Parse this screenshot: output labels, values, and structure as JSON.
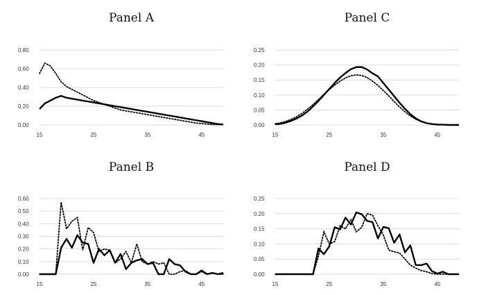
{
  "chart_data": [
    {
      "type": "line",
      "title": "Panel A",
      "xlabel": "",
      "ylabel": "",
      "x": [
        15,
        16,
        17,
        18,
        19,
        20,
        21,
        22,
        23,
        24,
        25,
        26,
        27,
        28,
        29,
        30,
        31,
        32,
        33,
        34,
        35,
        36,
        37,
        38,
        39,
        40,
        41,
        42,
        43,
        44,
        45,
        46,
        47,
        48,
        49
      ],
      "xticks": [
        15,
        25,
        35,
        45
      ],
      "ylim": [
        0,
        0.8
      ],
      "yticks": [
        "0.00",
        "0.20",
        "0.40",
        "0.60",
        "0.80"
      ],
      "grid": true,
      "series": [
        {
          "style": "solid",
          "values": [
            0.17,
            0.23,
            0.26,
            0.29,
            0.31,
            0.29,
            0.28,
            0.27,
            0.26,
            0.25,
            0.24,
            0.23,
            0.22,
            0.21,
            0.2,
            0.19,
            0.18,
            0.17,
            0.16,
            0.15,
            0.14,
            0.13,
            0.12,
            0.11,
            0.1,
            0.09,
            0.08,
            0.07,
            0.06,
            0.05,
            0.04,
            0.03,
            0.02,
            0.01,
            0.005
          ]
        },
        {
          "style": "dotted",
          "values": [
            0.55,
            0.66,
            0.63,
            0.55,
            0.46,
            0.41,
            0.38,
            0.35,
            0.32,
            0.29,
            0.26,
            0.24,
            0.22,
            0.2,
            0.18,
            0.16,
            0.15,
            0.14,
            0.13,
            0.12,
            0.11,
            0.1,
            0.09,
            0.08,
            0.07,
            0.06,
            0.05,
            0.04,
            0.03,
            0.02,
            0.015,
            0.01,
            0.005,
            0.003,
            0.002
          ]
        }
      ]
    },
    {
      "type": "line",
      "title": "Panel C",
      "xlabel": "",
      "ylabel": "",
      "x": [
        15,
        16,
        17,
        18,
        19,
        20,
        21,
        22,
        23,
        24,
        25,
        26,
        27,
        28,
        29,
        30,
        31,
        32,
        33,
        34,
        35,
        36,
        37,
        38,
        39,
        40,
        41,
        42,
        43,
        44,
        45,
        46,
        47,
        48,
        49
      ],
      "xticks": [
        15,
        25,
        35,
        45
      ],
      "ylim": [
        0,
        0.25
      ],
      "yticks": [
        "0.00",
        "0.05",
        "0.10",
        "0.15",
        "0.20",
        "0.25"
      ],
      "grid": true,
      "series": [
        {
          "style": "solid",
          "values": [
            0.002,
            0.004,
            0.008,
            0.014,
            0.022,
            0.032,
            0.045,
            0.062,
            0.08,
            0.1,
            0.12,
            0.14,
            0.158,
            0.173,
            0.186,
            0.193,
            0.193,
            0.185,
            0.172,
            0.162,
            0.14,
            0.118,
            0.096,
            0.074,
            0.054,
            0.036,
            0.022,
            0.012,
            0.006,
            0.003,
            0.001,
            0.001,
            0.0,
            0.0,
            0.0
          ]
        },
        {
          "style": "dotted",
          "values": [
            0.004,
            0.007,
            0.012,
            0.019,
            0.028,
            0.039,
            0.053,
            0.068,
            0.085,
            0.102,
            0.118,
            0.133,
            0.146,
            0.157,
            0.164,
            0.167,
            0.165,
            0.158,
            0.146,
            0.132,
            0.115,
            0.097,
            0.078,
            0.06,
            0.044,
            0.03,
            0.019,
            0.011,
            0.006,
            0.003,
            0.002,
            0.001,
            0.0,
            0.0,
            0.0
          ]
        }
      ]
    },
    {
      "type": "line",
      "title": "Panel B",
      "xlabel": "",
      "ylabel": "",
      "x": [
        15,
        16,
        17,
        18,
        19,
        20,
        21,
        22,
        23,
        24,
        25,
        26,
        27,
        28,
        29,
        30,
        31,
        32,
        33,
        34,
        35,
        36,
        37,
        38,
        39,
        40,
        41,
        42,
        43,
        44,
        45,
        46,
        47,
        48,
        49
      ],
      "xticks": [
        15,
        25,
        35,
        45
      ],
      "ylim": [
        0,
        0.6
      ],
      "yticks": [
        "0.00",
        "0.10",
        "0.20",
        "0.30",
        "0.40",
        "0.50",
        "0.60"
      ],
      "grid": true,
      "series": [
        {
          "style": "solid",
          "values": [
            0,
            0,
            0,
            0,
            0.21,
            0.28,
            0.21,
            0.31,
            0.25,
            0.24,
            0.09,
            0.2,
            0.15,
            0.19,
            0.09,
            0.16,
            0.04,
            0.09,
            0.11,
            0.12,
            0.08,
            0.09,
            0.0,
            0.0,
            0.12,
            0.08,
            0.07,
            0.02,
            0.0,
            0.0,
            0.03,
            0.0,
            0.01,
            0.0,
            0.01
          ]
        },
        {
          "style": "dotted",
          "values": [
            0,
            0,
            0,
            0,
            0.57,
            0.36,
            0.42,
            0.45,
            0.19,
            0.37,
            0.33,
            0.18,
            0.2,
            0.19,
            0.09,
            0.12,
            0.18,
            0.09,
            0.24,
            0.1,
            0.08,
            0.1,
            0.08,
            0.09,
            0.0,
            0.0,
            0.02,
            0.03,
            0.0,
            0.0,
            0.02,
            0.0,
            0.01,
            0.0,
            0.0
          ]
        }
      ]
    },
    {
      "type": "line",
      "title": "Panel D",
      "xlabel": "",
      "ylabel": "",
      "x": [
        15,
        16,
        17,
        18,
        19,
        20,
        21,
        22,
        23,
        24,
        25,
        26,
        27,
        28,
        29,
        30,
        31,
        32,
        33,
        34,
        35,
        36,
        37,
        38,
        39,
        40,
        41,
        42,
        43,
        44,
        45,
        46,
        47,
        48,
        49
      ],
      "xticks": [
        15,
        25,
        35,
        45
      ],
      "ylim": [
        0,
        0.25
      ],
      "yticks": [
        "0.00",
        "0.05",
        "0.10",
        "0.15",
        "0.20",
        "0.25"
      ],
      "grid": true,
      "series": [
        {
          "style": "solid",
          "values": [
            0,
            0,
            0,
            0,
            0,
            0,
            0,
            0,
            0.085,
            0.066,
            0.092,
            0.155,
            0.148,
            0.187,
            0.164,
            0.204,
            0.198,
            0.176,
            0.172,
            0.118,
            0.156,
            0.152,
            0.104,
            0.131,
            0.072,
            0.095,
            0.03,
            0.03,
            0.035,
            0.01,
            0.002,
            0.008,
            0.0,
            0.0,
            0.0
          ]
        },
        {
          "style": "dotted",
          "values": [
            0,
            0,
            0,
            0,
            0,
            0,
            0,
            0,
            0.06,
            0.14,
            0.1,
            0.108,
            0.16,
            0.15,
            0.18,
            0.14,
            0.155,
            0.2,
            0.195,
            0.16,
            0.13,
            0.08,
            0.074,
            0.07,
            0.05,
            0.03,
            0.02,
            0.012,
            0.008,
            0.002,
            0.0,
            0.0,
            0.0,
            0.0,
            0.0
          ]
        }
      ]
    }
  ]
}
